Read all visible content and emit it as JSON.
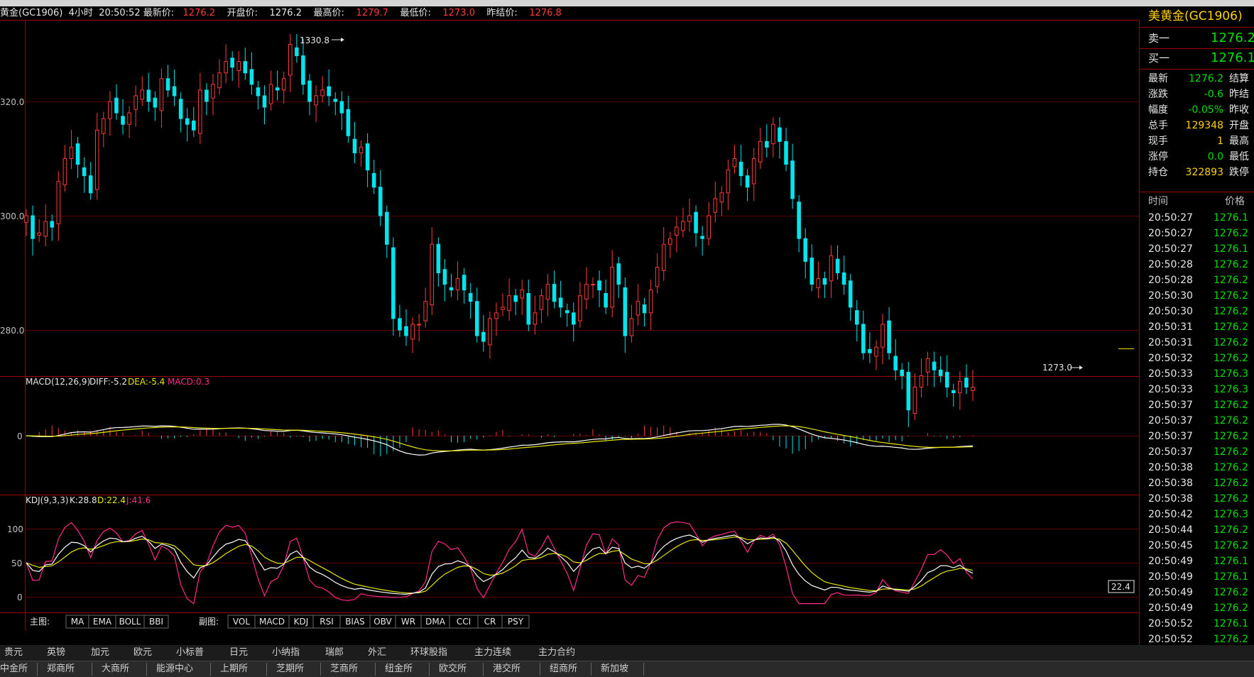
{
  "header": {
    "symbol": "黄金(GC1906)",
    "period": "4小时",
    "time": "20:50:52",
    "last_label": "最新价:",
    "last": "1276.2",
    "open_label": "开盘价:",
    "open": "1276.2",
    "high_label": "最高价:",
    "high": "1279.7",
    "low_label": "最低价:",
    "low": "1273.0",
    "settle_label": "昨结价:",
    "settle": "1276.8"
  },
  "chart_data": {
    "type": "candlestick",
    "y_ticks": [
      "320.0",
      "300.0",
      "280.0"
    ],
    "high_mark": "1330.8",
    "low_mark": "1273.0",
    "macd": {
      "label": "MACD(12,26,9)",
      "diff": "DIFF:-5.2",
      "dea": "DEA:-5.4",
      "macd": "MACD:0.3",
      "zero_tick": "0"
    },
    "kdj": {
      "label": "KDJ(9,3,3)",
      "k": "K:28.8",
      "d": "D:22.4",
      "j": "J:41.6",
      "ticks": [
        "100",
        "50",
        "0"
      ],
      "cursor_value": "22.4"
    },
    "colors": {
      "up": "#ff3a3a",
      "down": "#00e5ee",
      "grid": "#8a0000",
      "k_line": "#ffffff",
      "d_line": "#e6e600",
      "j_line": "#ff2a8a"
    }
  },
  "indicator_tabs": {
    "main_label": "主图:",
    "main": [
      "MA",
      "EMA",
      "BOLL",
      "BBI"
    ],
    "sub_label": "副图:",
    "sub": [
      "VOL",
      "MACD",
      "KDJ",
      "RSI",
      "BIAS",
      "OBV",
      "WR",
      "DMA",
      "CCI",
      "CR",
      "PSY"
    ]
  },
  "quote_panel": {
    "title": "美黄金(GC1906)",
    "sell_label": "卖一",
    "sell": "1276.2",
    "buy_label": "买一",
    "buy": "1276.1",
    "stats": [
      {
        "k": "最新",
        "v": "1276.2",
        "k2": "结算"
      },
      {
        "k": "涨跌",
        "v": "-0.6",
        "k2": "昨结"
      },
      {
        "k": "幅度",
        "v": "-0.05%",
        "k2": "昨收"
      },
      {
        "k": "总手",
        "v": "129348",
        "k2": "开盘"
      },
      {
        "k": "现手",
        "v": "1",
        "k2": "最高"
      },
      {
        "k": "涨停",
        "v": "0.0",
        "k2": "最低"
      },
      {
        "k": "持仓",
        "v": "322893",
        "k2": "跌停"
      }
    ],
    "ticks_header": {
      "time": "时间",
      "price": "价格"
    },
    "ticks": [
      {
        "t": "20:50:27",
        "p": "1276.1"
      },
      {
        "t": "20:50:27",
        "p": "1276.2"
      },
      {
        "t": "20:50:27",
        "p": "1276.1"
      },
      {
        "t": "20:50:28",
        "p": "1276.2"
      },
      {
        "t": "20:50:28",
        "p": "1276.2"
      },
      {
        "t": "20:50:30",
        "p": "1276.2"
      },
      {
        "t": "20:50:30",
        "p": "1276.2"
      },
      {
        "t": "20:50:31",
        "p": "1276.2"
      },
      {
        "t": "20:50:31",
        "p": "1276.2"
      },
      {
        "t": "20:50:32",
        "p": "1276.2"
      },
      {
        "t": "20:50:33",
        "p": "1276.3"
      },
      {
        "t": "20:50:33",
        "p": "1276.3"
      },
      {
        "t": "20:50:37",
        "p": "1276.2"
      },
      {
        "t": "20:50:37",
        "p": "1276.2"
      },
      {
        "t": "20:50:37",
        "p": "1276.2"
      },
      {
        "t": "20:50:37",
        "p": "1276.2"
      },
      {
        "t": "20:50:38",
        "p": "1276.2"
      },
      {
        "t": "20:50:38",
        "p": "1276.2"
      },
      {
        "t": "20:50:38",
        "p": "1276.2"
      },
      {
        "t": "20:50:42",
        "p": "1276.3"
      },
      {
        "t": "20:50:44",
        "p": "1276.2"
      },
      {
        "t": "20:50:45",
        "p": "1276.2"
      },
      {
        "t": "20:50:49",
        "p": "1276.1"
      },
      {
        "t": "20:50:49",
        "p": "1276.1"
      },
      {
        "t": "20:50:49",
        "p": "1276.2"
      },
      {
        "t": "20:50:49",
        "p": "1276.2"
      },
      {
        "t": "20:50:52",
        "p": "1276.1"
      },
      {
        "t": "20:50:52",
        "p": "1276.2"
      }
    ]
  },
  "bottom_tabs": [
    "贵元",
    "英镑",
    "加元",
    "欧元",
    "小标普",
    "日元",
    "小纳指",
    "瑞郎",
    "外汇",
    "环球股指",
    "主力连续",
    "主力合约"
  ],
  "exchange_tabs": [
    "中金所",
    "郑商所",
    "大商所",
    "能源中心",
    "上期所",
    "芝期所",
    "芝商所",
    "纽金所",
    "欧交所",
    "港交所",
    "纽商所",
    "新加坡"
  ]
}
